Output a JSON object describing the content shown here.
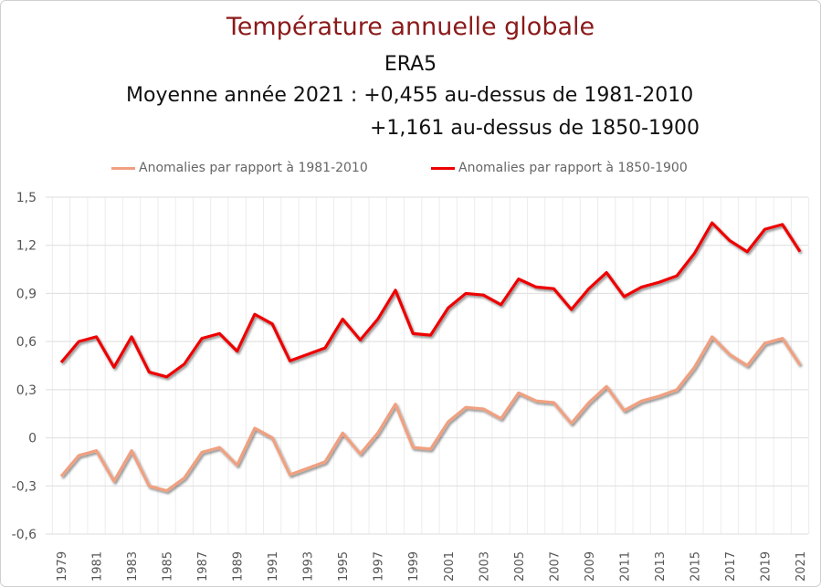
{
  "chart_data": {
    "type": "line",
    "title": "Température annuelle globale",
    "subtitle_lines": [
      "ERA5",
      "Moyenne année 2021 : +0,455 au-dessus de 1981-2010",
      "+1,161 au-dessus de 1850-1900"
    ],
    "x": [
      1979,
      1980,
      1981,
      1982,
      1983,
      1984,
      1985,
      1986,
      1987,
      1988,
      1989,
      1990,
      1991,
      1992,
      1993,
      1994,
      1995,
      1996,
      1997,
      1998,
      1999,
      2000,
      2001,
      2002,
      2003,
      2004,
      2005,
      2006,
      2007,
      2008,
      2009,
      2010,
      2011,
      2012,
      2013,
      2014,
      2015,
      2016,
      2017,
      2018,
      2019,
      2020,
      2021
    ],
    "x_tick_labels": [
      "1979",
      "1981",
      "1983",
      "1985",
      "1987",
      "1989",
      "1991",
      "1993",
      "1995",
      "1997",
      "1999",
      "2001",
      "2003",
      "2005",
      "2007",
      "2009",
      "2011",
      "2013",
      "2015",
      "2017",
      "2019",
      "2021"
    ],
    "y_tick_labels": [
      "-0,6",
      "-0,3",
      "0",
      "0,3",
      "0,6",
      "0,9",
      "1,2",
      "1,5"
    ],
    "y_ticks": [
      -0.6,
      -0.3,
      0,
      0.3,
      0.6,
      0.9,
      1.2,
      1.5
    ],
    "ylim": [
      -0.6,
      1.5
    ],
    "grid": true,
    "legend_placement": "top",
    "series": [
      {
        "name": "Anomalies par rapport à 1981-2010",
        "color": "#f0a080",
        "values": [
          -0.24,
          -0.11,
          -0.08,
          -0.27,
          -0.08,
          -0.3,
          -0.33,
          -0.25,
          -0.09,
          -0.06,
          -0.17,
          0.06,
          0.0,
          -0.23,
          -0.19,
          -0.15,
          0.03,
          -0.1,
          0.03,
          0.21,
          -0.06,
          -0.07,
          0.1,
          0.19,
          0.18,
          0.12,
          0.28,
          0.23,
          0.22,
          0.09,
          0.22,
          0.32,
          0.17,
          0.23,
          0.26,
          0.3,
          0.44,
          0.63,
          0.52,
          0.45,
          0.59,
          0.62,
          0.455
        ]
      },
      {
        "name": "Anomalies par rapport à 1850-1900",
        "color": "#ee0000",
        "values": [
          0.47,
          0.6,
          0.63,
          0.44,
          0.63,
          0.41,
          0.38,
          0.46,
          0.62,
          0.65,
          0.54,
          0.77,
          0.71,
          0.48,
          0.52,
          0.56,
          0.74,
          0.61,
          0.74,
          0.92,
          0.65,
          0.64,
          0.81,
          0.9,
          0.89,
          0.83,
          0.99,
          0.94,
          0.93,
          0.8,
          0.93,
          1.03,
          0.88,
          0.94,
          0.97,
          1.01,
          1.15,
          1.34,
          1.23,
          1.16,
          1.3,
          1.33,
          1.161
        ]
      }
    ]
  }
}
